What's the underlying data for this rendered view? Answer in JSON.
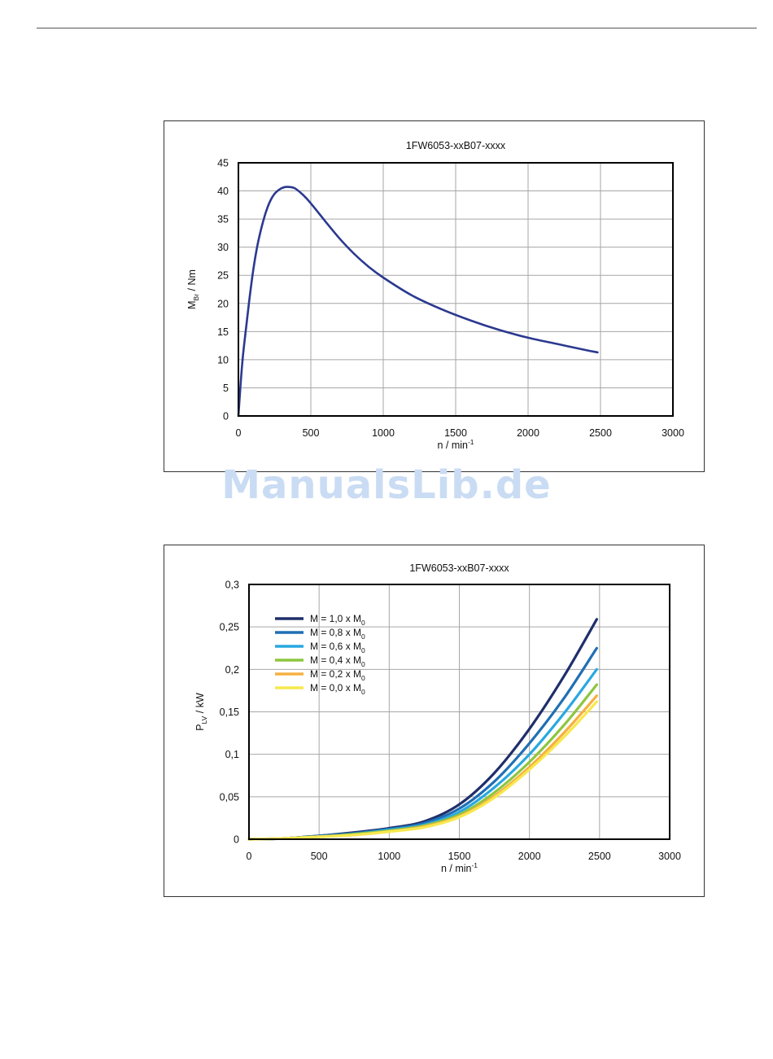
{
  "watermark": "ManualsLib.de",
  "chart_data": [
    {
      "type": "line",
      "title": "1FW6053-xxB07-xxxx",
      "xlabel_main": "n / min",
      "xlabel_sup": "-1",
      "ylabel_main": "M",
      "ylabel_sub": "Br",
      "ylabel_rest": " / Nm",
      "xlim": [
        0,
        3000
      ],
      "ylim": [
        0,
        45
      ],
      "xticks": [
        0,
        500,
        1000,
        1500,
        2000,
        2500,
        3000
      ],
      "xtick_labels": [
        "0",
        "500",
        "1000",
        "1500",
        "2000",
        "2500",
        "3000"
      ],
      "yticks": [
        0,
        5,
        10,
        15,
        20,
        25,
        30,
        35,
        40,
        45
      ],
      "ytick_labels": [
        "0",
        "5",
        "10",
        "15",
        "20",
        "25",
        "30",
        "35",
        "40",
        "45"
      ],
      "grid": true,
      "series": [
        {
          "color": "#2b3990",
          "x": [
            0,
            25,
            50,
            75,
            100,
            125,
            150,
            175,
            200,
            225,
            250,
            275,
            300,
            325,
            350,
            375,
            400,
            450,
            500,
            600,
            700,
            800,
            900,
            1000,
            1200,
            1400,
            1600,
            1800,
            2000,
            2200,
            2400,
            2480
          ],
          "y": [
            0,
            9,
            15,
            20.5,
            25.5,
            29.5,
            32.5,
            35,
            37,
            38.5,
            39.5,
            40.1,
            40.5,
            40.7,
            40.7,
            40.6,
            40.3,
            39.2,
            37.8,
            34.6,
            31.5,
            28.8,
            26.5,
            24.6,
            21.4,
            19.0,
            17.0,
            15.3,
            13.9,
            12.8,
            11.7,
            11.3
          ]
        }
      ]
    },
    {
      "type": "line",
      "title": "1FW6053-xxB07-xxxx",
      "xlabel_main": "n / min",
      "xlabel_sup": "-1",
      "ylabel_main": "P",
      "ylabel_sub": "LV",
      "ylabel_rest": " / kW",
      "xlim": [
        0,
        3000
      ],
      "ylim": [
        0,
        0.3
      ],
      "xticks": [
        0,
        500,
        1000,
        1500,
        2000,
        2500,
        3000
      ],
      "xtick_labels": [
        "0",
        "500",
        "1000",
        "1500",
        "2000",
        "2500",
        "3000"
      ],
      "yticks": [
        0,
        0.05,
        0.1,
        0.15,
        0.2,
        0.25,
        0.3
      ],
      "ytick_labels": [
        "0",
        "0,05",
        "0,1",
        "0,15",
        "0,2",
        "0,25",
        "0,3"
      ],
      "grid": true,
      "legend_position": "top-left",
      "series": [
        {
          "name_main": "M = 1,0 x M",
          "name_sub": "0",
          "color": "#1f2f6b",
          "x": [
            0,
            250,
            500,
            750,
            1000,
            1250,
            1500,
            1750,
            2000,
            2250,
            2480
          ],
          "y": [
            0,
            0.001,
            0.004,
            0.008,
            0.013,
            0.021,
            0.041,
            0.078,
            0.13,
            0.193,
            0.259
          ]
        },
        {
          "name_main": "M = 0,8 x M",
          "name_sub": "0",
          "color": "#1f6fb4",
          "x": [
            0,
            250,
            500,
            750,
            1000,
            1250,
            1500,
            1750,
            2000,
            2250,
            2480
          ],
          "y": [
            0,
            0.001,
            0.004,
            0.007,
            0.012,
            0.019,
            0.036,
            0.068,
            0.113,
            0.167,
            0.225
          ]
        },
        {
          "name_main": "M = 0,6 x M",
          "name_sub": "0",
          "color": "#29a8e0",
          "x": [
            0,
            250,
            500,
            750,
            1000,
            1250,
            1500,
            1750,
            2000,
            2250,
            2480
          ],
          "y": [
            0,
            0.001,
            0.003,
            0.006,
            0.011,
            0.017,
            0.032,
            0.061,
            0.1,
            0.149,
            0.2
          ]
        },
        {
          "name_main": "M = 0,4 x M",
          "name_sub": "0",
          "color": "#8dc63f",
          "x": [
            0,
            250,
            500,
            750,
            1000,
            1250,
            1500,
            1750,
            2000,
            2250,
            2480
          ],
          "y": [
            0,
            0.001,
            0.003,
            0.006,
            0.01,
            0.016,
            0.029,
            0.055,
            0.091,
            0.135,
            0.182
          ]
        },
        {
          "name_main": "M = 0,2 x M",
          "name_sub": "0",
          "color": "#f6b040",
          "x": [
            0,
            250,
            500,
            750,
            1000,
            1250,
            1500,
            1750,
            2000,
            2250,
            2480
          ],
          "y": [
            0,
            0.001,
            0.003,
            0.005,
            0.009,
            0.015,
            0.027,
            0.051,
            0.085,
            0.126,
            0.169
          ]
        },
        {
          "name_main": "M = 0,0 x M",
          "name_sub": "0",
          "color": "#f7e84e",
          "x": [
            0,
            250,
            500,
            750,
            1000,
            1250,
            1500,
            1750,
            2000,
            2250,
            2480
          ],
          "y": [
            0,
            0.001,
            0.003,
            0.005,
            0.009,
            0.014,
            0.026,
            0.049,
            0.082,
            0.121,
            0.162
          ]
        }
      ]
    }
  ]
}
